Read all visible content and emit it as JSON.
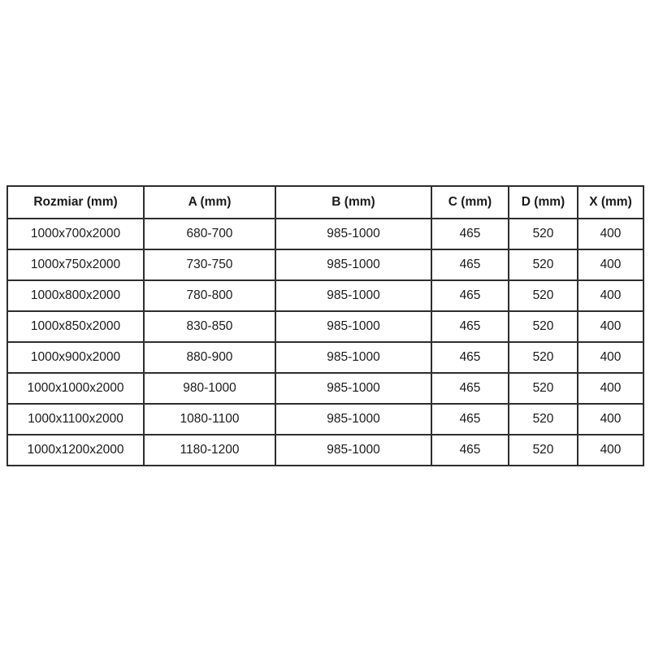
{
  "chart_data": {
    "type": "table",
    "title": "",
    "columns": [
      "Rozmiar (mm)",
      "A (mm)",
      "B (mm)",
      "C (mm)",
      "D (mm)",
      "X (mm)"
    ],
    "rows": [
      [
        "1000x700x2000",
        "680-700",
        "985-1000",
        "465",
        "520",
        "400"
      ],
      [
        "1000x750x2000",
        "730-750",
        "985-1000",
        "465",
        "520",
        "400"
      ],
      [
        "1000x800x2000",
        "780-800",
        "985-1000",
        "465",
        "520",
        "400"
      ],
      [
        "1000x850x2000",
        "830-850",
        "985-1000",
        "465",
        "520",
        "400"
      ],
      [
        "1000x900x2000",
        "880-900",
        "985-1000",
        "465",
        "520",
        "400"
      ],
      [
        "1000x1000x2000",
        "980-1000",
        "985-1000",
        "465",
        "520",
        "400"
      ],
      [
        "1000x1100x2000",
        "1080-1100",
        "985-1000",
        "465",
        "520",
        "400"
      ],
      [
        "1000x1200x2000",
        "1180-1200",
        "985-1000",
        "465",
        "520",
        "400"
      ]
    ],
    "layout": {
      "grid": true,
      "header_bold": true,
      "text_align": "center"
    },
    "colors": {
      "background": "#ffffff",
      "header_background": "#ffffff",
      "border": "#2e2e2e",
      "text": "#1a1a1a"
    }
  }
}
